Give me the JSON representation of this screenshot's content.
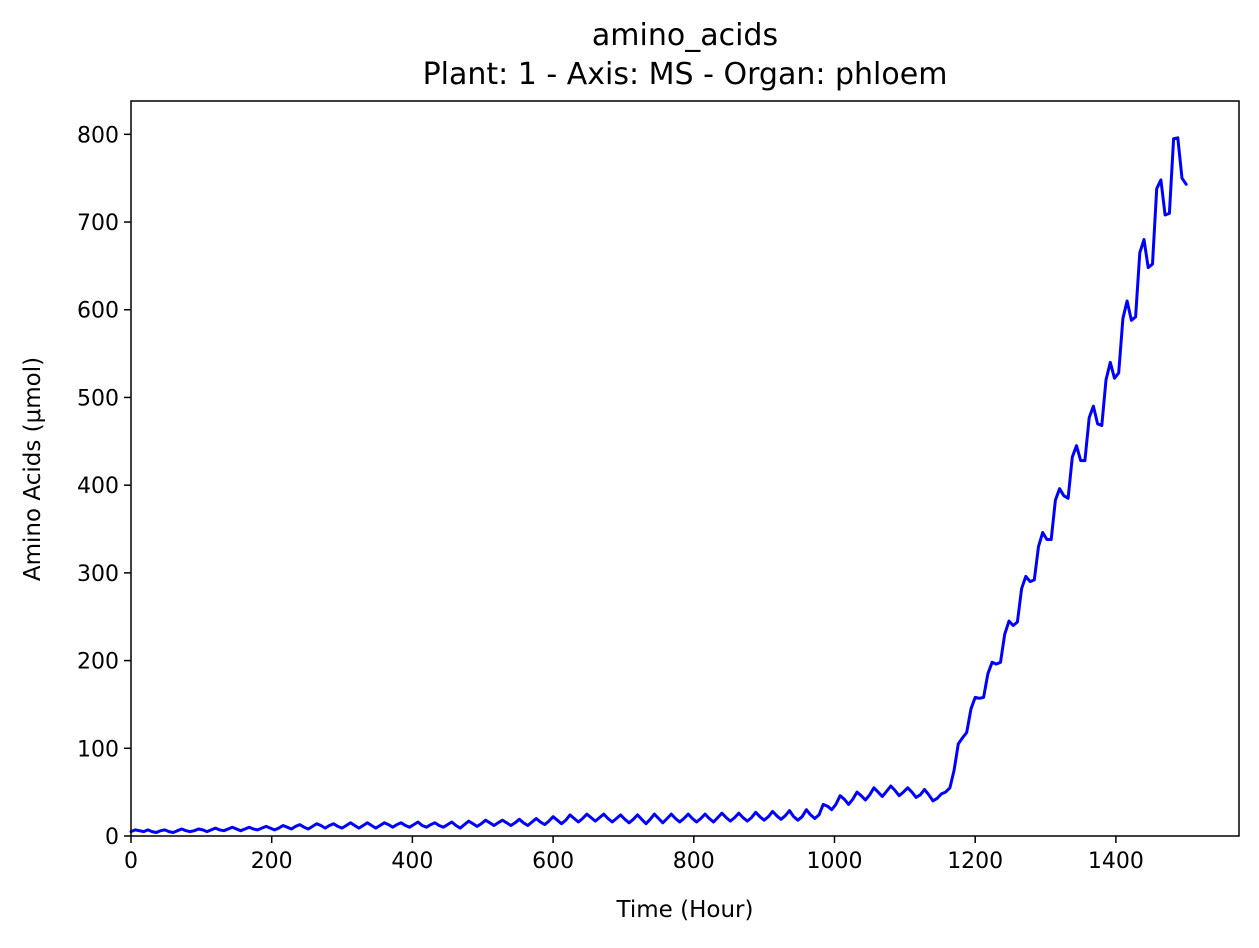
{
  "chart_data": {
    "type": "line",
    "title": "amino_acids",
    "subtitle": "Plant: 1 - Axis: MS - Organ: phloem",
    "xlabel": "Time (Hour)",
    "ylabel": "Amino Acids (μmol)",
    "xlim": [
      0,
      1575
    ],
    "ylim": [
      0,
      838
    ],
    "xticks": [
      0,
      200,
      400,
      600,
      800,
      1000,
      1200,
      1400
    ],
    "yticks": [
      0,
      100,
      200,
      300,
      400,
      500,
      600,
      700,
      800
    ],
    "xtick_labels": [
      "0",
      "200",
      "400",
      "600",
      "800",
      "1000",
      "1200",
      "1400"
    ],
    "ytick_labels": [
      "0",
      "100",
      "200",
      "300",
      "400",
      "500",
      "600",
      "700",
      "800"
    ],
    "grid": false,
    "legend": "none",
    "series": [
      {
        "color": "#0000ff",
        "x": [
          0,
          6,
          12,
          18,
          24,
          30,
          36,
          42,
          48,
          54,
          60,
          66,
          72,
          78,
          84,
          90,
          96,
          102,
          108,
          114,
          120,
          126,
          132,
          138,
          144,
          150,
          156,
          162,
          168,
          174,
          180,
          186,
          192,
          198,
          204,
          210,
          216,
          222,
          228,
          234,
          240,
          246,
          252,
          258,
          264,
          270,
          276,
          282,
          288,
          294,
          300,
          306,
          312,
          318,
          324,
          330,
          336,
          342,
          348,
          354,
          360,
          366,
          372,
          378,
          384,
          390,
          396,
          402,
          408,
          414,
          420,
          426,
          432,
          438,
          444,
          450,
          456,
          462,
          468,
          474,
          480,
          486,
          492,
          498,
          504,
          510,
          516,
          522,
          528,
          534,
          540,
          546,
          552,
          558,
          564,
          570,
          576,
          582,
          588,
          594,
          600,
          606,
          612,
          618,
          624,
          630,
          636,
          642,
          648,
          654,
          660,
          666,
          672,
          678,
          684,
          690,
          696,
          702,
          708,
          714,
          720,
          726,
          732,
          738,
          744,
          750,
          756,
          762,
          768,
          774,
          780,
          786,
          792,
          798,
          804,
          810,
          816,
          822,
          828,
          834,
          840,
          846,
          852,
          858,
          864,
          870,
          876,
          882,
          888,
          894,
          900,
          906,
          912,
          918,
          924,
          930,
          936,
          942,
          948,
          954,
          960,
          966,
          972,
          978,
          984,
          990,
          996,
          1002,
          1008,
          1014,
          1020,
          1026,
          1032,
          1038,
          1044,
          1050,
          1056,
          1062,
          1068,
          1074,
          1080,
          1086,
          1092,
          1098,
          1104,
          1110,
          1116,
          1122,
          1128,
          1134,
          1140,
          1146,
          1152,
          1158,
          1164,
          1170,
          1176,
          1182,
          1188,
          1194,
          1200,
          1206,
          1212,
          1218,
          1224,
          1230,
          1236,
          1242,
          1248,
          1254,
          1260,
          1266,
          1272,
          1278,
          1284,
          1290,
          1296,
          1302,
          1308,
          1314,
          1320,
          1326,
          1332,
          1338,
          1344,
          1350,
          1356,
          1362,
          1368,
          1374,
          1380,
          1386,
          1392,
          1398,
          1404,
          1410,
          1416,
          1422,
          1428,
          1434,
          1440,
          1446,
          1452,
          1458,
          1464,
          1470,
          1476,
          1482,
          1488,
          1494,
          1500
        ],
        "y": [
          5,
          7,
          6,
          5,
          7,
          5,
          4,
          6,
          7,
          5,
          4,
          6,
          8,
          6,
          5,
          6,
          8,
          7,
          5,
          7,
          9,
          7,
          6,
          8,
          10,
          8,
          6,
          8,
          10,
          8,
          7,
          9,
          11,
          9,
          7,
          9,
          12,
          10,
          8,
          11,
          13,
          10,
          8,
          11,
          14,
          12,
          9,
          12,
          14,
          11,
          9,
          12,
          15,
          12,
          9,
          12,
          15,
          12,
          9,
          12,
          15,
          13,
          10,
          13,
          15,
          12,
          10,
          13,
          16,
          12,
          10,
          13,
          15,
          12,
          10,
          13,
          16,
          12,
          9,
          13,
          17,
          14,
          11,
          14,
          18,
          15,
          12,
          15,
          18,
          15,
          12,
          15,
          19,
          15,
          12,
          16,
          20,
          16,
          13,
          17,
          22,
          18,
          14,
          18,
          24,
          20,
          16,
          20,
          25,
          21,
          17,
          21,
          25,
          20,
          16,
          20,
          24,
          19,
          15,
          19,
          24,
          19,
          14,
          19,
          25,
          20,
          15,
          20,
          25,
          20,
          16,
          20,
          25,
          20,
          16,
          20,
          25,
          20,
          16,
          21,
          26,
          21,
          17,
          21,
          26,
          21,
          17,
          21,
          27,
          22,
          18,
          22,
          28,
          23,
          19,
          23,
          29,
          22,
          18,
          22,
          30,
          24,
          20,
          24,
          36,
          34,
          30,
          36,
          46,
          42,
          36,
          42,
          50,
          46,
          41,
          47,
          55,
          50,
          45,
          51,
          57,
          52,
          46,
          50,
          55,
          50,
          44,
          47,
          53,
          47,
          40,
          43,
          48,
          50,
          55,
          75,
          105,
          112,
          118,
          145,
          158,
          157,
          158,
          185,
          198,
          196,
          198,
          230,
          245,
          240,
          244,
          282,
          296,
          290,
          292,
          330,
          346,
          338,
          338,
          383,
          396,
          388,
          385,
          432,
          445,
          428,
          428,
          477,
          490,
          470,
          468,
          520,
          540,
          522,
          528,
          590,
          610,
          588,
          592,
          665,
          680,
          648,
          652,
          738,
          748,
          708,
          710,
          795,
          796,
          750,
          743
        ]
      }
    ]
  }
}
